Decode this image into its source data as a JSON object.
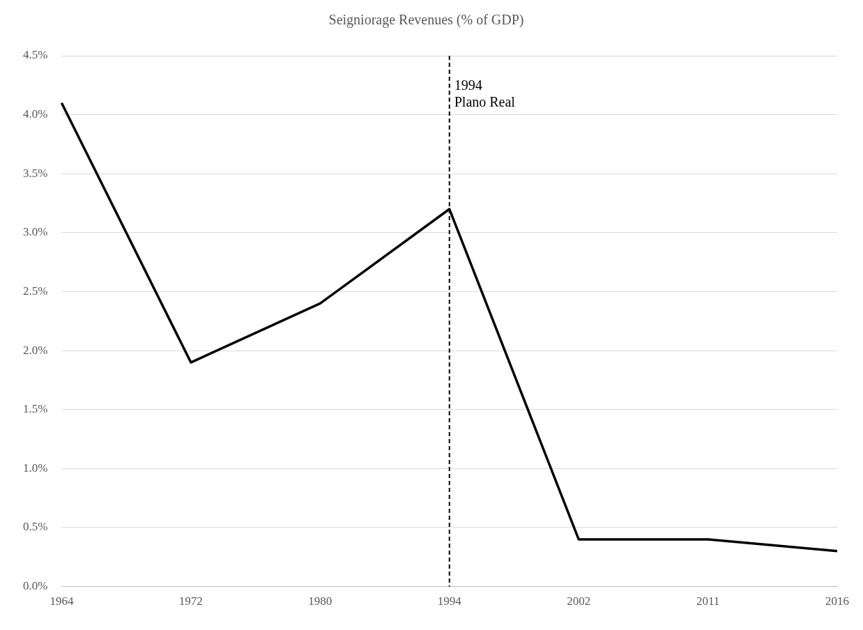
{
  "chart_data": {
    "type": "line",
    "title": "Seigniorage Revenues (% of GDP)",
    "categories": [
      "1964",
      "1972",
      "1980",
      "1994",
      "2002",
      "2011",
      "2016"
    ],
    "series": [
      {
        "color": "#000000",
        "values": [
          4.1,
          1.9,
          2.4,
          3.2,
          0.4,
          0.4,
          0.3
        ]
      }
    ],
    "ylim": [
      0,
      4.5
    ],
    "yticks": [
      {
        "value": 0,
        "label": "0.0%"
      },
      {
        "value": 0.5,
        "label": "0.5%"
      },
      {
        "value": 1,
        "label": "1.0%"
      },
      {
        "value": 1.5,
        "label": "1.5%"
      },
      {
        "value": 2,
        "label": "2.0%"
      },
      {
        "value": 2.5,
        "label": "2.5%"
      },
      {
        "value": 3,
        "label": "3.0%"
      },
      {
        "value": 3.5,
        "label": "3.5%"
      },
      {
        "value": 4,
        "label": "4.0%"
      },
      {
        "value": 4.5,
        "label": "4.5%"
      }
    ],
    "ref_lines": [
      {
        "axis": "x",
        "value": "1994",
        "label": "1994\nPlano Real",
        "color": "#000000",
        "line_style": "dashed"
      }
    ],
    "grid": "y",
    "legend": false,
    "marker": "none",
    "line_style": "solid"
  }
}
